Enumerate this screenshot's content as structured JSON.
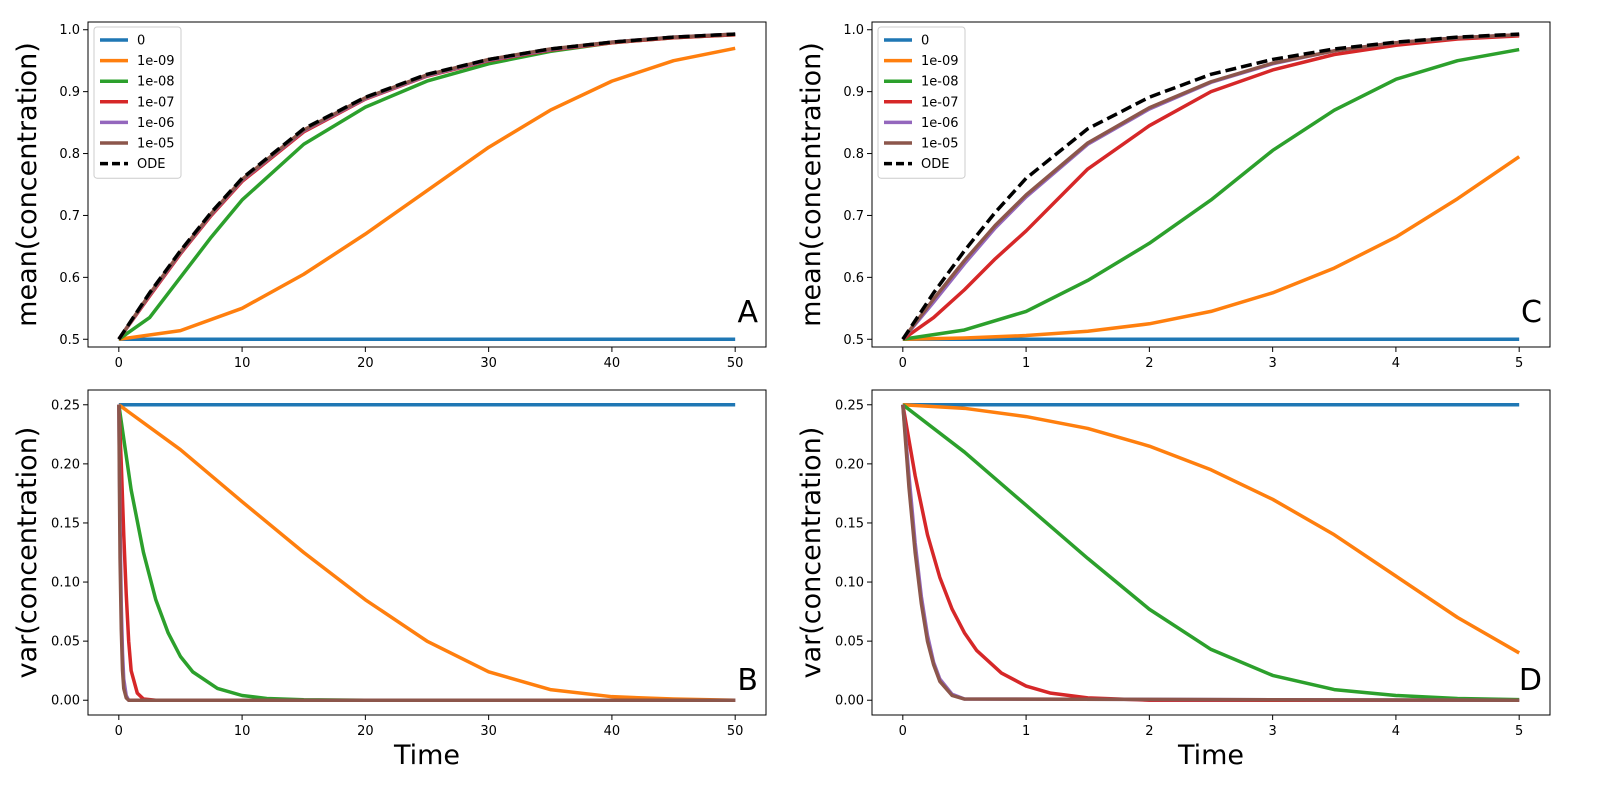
{
  "chart_data": [
    {
      "panel": "A",
      "type": "line",
      "xlabel": "",
      "ylabel": "mean(concentration)",
      "xlim": [
        -2.5,
        52.5
      ],
      "ylim": [
        0.4875,
        1.0125
      ],
      "xticks": [
        "0",
        "10",
        "20",
        "30",
        "40",
        "50"
      ],
      "yticks": [
        "0.5",
        "0.6",
        "0.7",
        "0.8",
        "0.9",
        "1.0"
      ],
      "legend": "top-left",
      "series": [
        {
          "name": "0",
          "color": "#1f77b4",
          "x": [
            0,
            50
          ],
          "y": [
            0.5,
            0.5
          ]
        },
        {
          "name": "1e-09",
          "color": "#ff7f0e",
          "x": [
            0,
            5,
            10,
            15,
            20,
            25,
            30,
            35,
            40,
            45,
            50
          ],
          "y": [
            0.5,
            0.514,
            0.55,
            0.605,
            0.67,
            0.74,
            0.81,
            0.87,
            0.917,
            0.95,
            0.97
          ]
        },
        {
          "name": "1e-08",
          "color": "#2ca02c",
          "x": [
            0,
            2.5,
            5,
            7.5,
            10,
            15,
            20,
            25,
            30,
            35,
            40,
            45,
            50
          ],
          "y": [
            0.5,
            0.535,
            0.6,
            0.665,
            0.725,
            0.815,
            0.875,
            0.917,
            0.945,
            0.965,
            0.979,
            0.987,
            0.992
          ]
        },
        {
          "name": "1e-07",
          "color": "#d62728",
          "x": [
            0,
            2.5,
            5,
            7.5,
            10,
            15,
            20,
            25,
            30,
            35,
            40,
            45,
            50
          ],
          "y": [
            0.5,
            0.57,
            0.638,
            0.7,
            0.755,
            0.835,
            0.888,
            0.925,
            0.95,
            0.967,
            0.979,
            0.987,
            0.992
          ]
        },
        {
          "name": "1e-06",
          "color": "#9467bd",
          "x": [
            0,
            2.5,
            5,
            7.5,
            10,
            15,
            20,
            25,
            30,
            35,
            40,
            45,
            50
          ],
          "y": [
            0.5,
            0.572,
            0.64,
            0.702,
            0.757,
            0.837,
            0.889,
            0.926,
            0.951,
            0.968,
            0.98,
            0.988,
            0.993
          ]
        },
        {
          "name": "1e-05",
          "color": "#8c564b",
          "x": [
            0,
            2.5,
            5,
            7.5,
            10,
            15,
            20,
            25,
            30,
            35,
            40,
            45,
            50
          ],
          "y": [
            0.5,
            0.573,
            0.641,
            0.703,
            0.758,
            0.838,
            0.89,
            0.927,
            0.952,
            0.969,
            0.98,
            0.988,
            0.993
          ]
        },
        {
          "name": "ODE",
          "color": "#000000",
          "dashed": true,
          "x": [
            0,
            2.5,
            5,
            7.5,
            10,
            15,
            20,
            25,
            30,
            35,
            40,
            45,
            50
          ],
          "y": [
            0.5,
            0.575,
            0.643,
            0.705,
            0.76,
            0.84,
            0.891,
            0.928,
            0.952,
            0.969,
            0.98,
            0.988,
            0.993
          ]
        }
      ]
    },
    {
      "panel": "C",
      "type": "line",
      "xlabel": "",
      "ylabel": "mean(concentration)",
      "xlim": [
        -0.25,
        5.25
      ],
      "ylim": [
        0.4875,
        1.0125
      ],
      "xticks": [
        "0",
        "1",
        "2",
        "3",
        "4",
        "5"
      ],
      "yticks": [
        "0.5",
        "0.6",
        "0.7",
        "0.8",
        "0.9",
        "1.0"
      ],
      "legend": "top-left",
      "series": [
        {
          "name": "0",
          "color": "#1f77b4",
          "x": [
            0,
            5
          ],
          "y": [
            0.5,
            0.5
          ]
        },
        {
          "name": "1e-09",
          "color": "#ff7f0e",
          "x": [
            0,
            0.5,
            1,
            1.5,
            2,
            2.5,
            3,
            3.5,
            4,
            4.5,
            5
          ],
          "y": [
            0.5,
            0.502,
            0.506,
            0.513,
            0.525,
            0.545,
            0.575,
            0.615,
            0.665,
            0.727,
            0.795
          ]
        },
        {
          "name": "1e-08",
          "color": "#2ca02c",
          "x": [
            0,
            0.5,
            1,
            1.5,
            2,
            2.5,
            3,
            3.5,
            4,
            4.5,
            5
          ],
          "y": [
            0.5,
            0.515,
            0.545,
            0.595,
            0.655,
            0.725,
            0.805,
            0.87,
            0.92,
            0.95,
            0.968
          ]
        },
        {
          "name": "1e-07",
          "color": "#d62728",
          "x": [
            0,
            0.25,
            0.5,
            0.75,
            1,
            1.5,
            2,
            2.5,
            3,
            3.5,
            4,
            4.5,
            5
          ],
          "y": [
            0.5,
            0.535,
            0.58,
            0.63,
            0.675,
            0.775,
            0.845,
            0.9,
            0.935,
            0.96,
            0.975,
            0.985,
            0.99
          ]
        },
        {
          "name": "1e-06",
          "color": "#9467bd",
          "x": [
            0,
            0.25,
            0.5,
            0.75,
            1,
            1.5,
            2,
            2.5,
            3,
            3.5,
            4,
            4.5,
            5
          ],
          "y": [
            0.5,
            0.56,
            0.622,
            0.68,
            0.73,
            0.815,
            0.872,
            0.915,
            0.945,
            0.966,
            0.979,
            0.987,
            0.992
          ]
        },
        {
          "name": "1e-05",
          "color": "#8c564b",
          "x": [
            0,
            0.25,
            0.5,
            0.75,
            1,
            1.5,
            2,
            2.5,
            3,
            3.5,
            4,
            4.5,
            5
          ],
          "y": [
            0.5,
            0.565,
            0.627,
            0.684,
            0.733,
            0.817,
            0.874,
            0.916,
            0.946,
            0.966,
            0.979,
            0.987,
            0.992
          ]
        },
        {
          "name": "ODE",
          "color": "#000000",
          "dashed": true,
          "x": [
            0,
            0.25,
            0.5,
            0.75,
            1,
            1.5,
            2,
            2.5,
            3,
            3.5,
            4,
            4.5,
            5
          ],
          "y": [
            0.5,
            0.575,
            0.643,
            0.705,
            0.76,
            0.84,
            0.891,
            0.928,
            0.952,
            0.969,
            0.98,
            0.988,
            0.993
          ]
        }
      ]
    },
    {
      "panel": "B",
      "type": "line",
      "xlabel": "Time",
      "ylabel": "var(concentration)",
      "xlim": [
        -2.5,
        52.5
      ],
      "ylim": [
        -0.0125,
        0.2625
      ],
      "xticks": [
        "0",
        "10",
        "20",
        "30",
        "40",
        "50"
      ],
      "yticks": [
        "0.00",
        "0.05",
        "0.10",
        "0.15",
        "0.20",
        "0.25"
      ],
      "series": [
        {
          "name": "0",
          "color": "#1f77b4",
          "x": [
            0,
            50
          ],
          "y": [
            0.25,
            0.25
          ]
        },
        {
          "name": "1e-09",
          "color": "#ff7f0e",
          "x": [
            0,
            5,
            10,
            15,
            20,
            25,
            30,
            35,
            40,
            45,
            50
          ],
          "y": [
            0.25,
            0.212,
            0.168,
            0.125,
            0.085,
            0.05,
            0.024,
            0.009,
            0.003,
            0.001,
            0.0
          ]
        },
        {
          "name": "1e-08",
          "color": "#2ca02c",
          "x": [
            0,
            1,
            2,
            3,
            4,
            5,
            6,
            8,
            10,
            12,
            15,
            20,
            30,
            50
          ],
          "y": [
            0.25,
            0.178,
            0.125,
            0.085,
            0.057,
            0.037,
            0.024,
            0.01,
            0.004,
            0.0015,
            0.0004,
            0.0,
            0.0,
            0.0
          ]
        },
        {
          "name": "1e-07",
          "color": "#d62728",
          "x": [
            0,
            0.2,
            0.4,
            0.6,
            0.8,
            1.0,
            1.5,
            2.0,
            3.0,
            50
          ],
          "y": [
            0.25,
            0.2,
            0.14,
            0.09,
            0.05,
            0.025,
            0.006,
            0.001,
            0.0,
            0.0
          ]
        },
        {
          "name": "1e-06",
          "color": "#9467bd",
          "x": [
            0,
            0.1,
            0.2,
            0.3,
            0.4,
            0.6,
            0.8,
            50
          ],
          "y": [
            0.25,
            0.15,
            0.08,
            0.04,
            0.018,
            0.004,
            0.0,
            0.0
          ]
        },
        {
          "name": "1e-05",
          "color": "#8c564b",
          "x": [
            0,
            0.05,
            0.1,
            0.2,
            0.3,
            0.4,
            0.6,
            0.8,
            50
          ],
          "y": [
            0.25,
            0.18,
            0.12,
            0.06,
            0.025,
            0.01,
            0.002,
            0.0,
            0.0
          ]
        }
      ]
    },
    {
      "panel": "D",
      "type": "line",
      "xlabel": "Time",
      "ylabel": "var(concentration)",
      "xlim": [
        -0.25,
        5.25
      ],
      "ylim": [
        -0.0125,
        0.2625
      ],
      "xticks": [
        "0",
        "1",
        "2",
        "3",
        "4",
        "5"
      ],
      "yticks": [
        "0.00",
        "0.05",
        "0.10",
        "0.15",
        "0.20",
        "0.25"
      ],
      "series": [
        {
          "name": "0",
          "color": "#1f77b4",
          "x": [
            0,
            5
          ],
          "y": [
            0.25,
            0.25
          ]
        },
        {
          "name": "1e-09",
          "color": "#ff7f0e",
          "x": [
            0,
            0.5,
            1,
            1.5,
            2,
            2.5,
            3,
            3.5,
            4,
            4.5,
            5
          ],
          "y": [
            0.25,
            0.247,
            0.24,
            0.23,
            0.215,
            0.195,
            0.17,
            0.14,
            0.105,
            0.07,
            0.04
          ]
        },
        {
          "name": "1e-08",
          "color": "#2ca02c",
          "x": [
            0,
            0.5,
            1,
            1.5,
            2,
            2.5,
            3,
            3.5,
            4,
            4.5,
            5
          ],
          "y": [
            0.25,
            0.21,
            0.165,
            0.12,
            0.077,
            0.043,
            0.021,
            0.009,
            0.004,
            0.0015,
            0.0005
          ]
        },
        {
          "name": "1e-07",
          "color": "#d62728",
          "x": [
            0,
            0.1,
            0.2,
            0.3,
            0.4,
            0.5,
            0.6,
            0.8,
            1.0,
            1.2,
            1.5,
            2.0,
            5
          ],
          "y": [
            0.25,
            0.19,
            0.14,
            0.104,
            0.077,
            0.057,
            0.042,
            0.023,
            0.012,
            0.006,
            0.002,
            0.0,
            0.0
          ]
        },
        {
          "name": "1e-06",
          "color": "#9467bd",
          "x": [
            0,
            0.05,
            0.1,
            0.15,
            0.2,
            0.25,
            0.3,
            0.4,
            0.5,
            5
          ],
          "y": [
            0.25,
            0.19,
            0.133,
            0.088,
            0.055,
            0.032,
            0.018,
            0.005,
            0.001,
            0.0
          ]
        },
        {
          "name": "1e-05",
          "color": "#8c564b",
          "x": [
            0,
            0.05,
            0.1,
            0.15,
            0.2,
            0.25,
            0.3,
            0.4,
            0.5,
            5
          ],
          "y": [
            0.25,
            0.18,
            0.125,
            0.082,
            0.05,
            0.03,
            0.016,
            0.004,
            0.001,
            0.0
          ]
        }
      ]
    }
  ]
}
